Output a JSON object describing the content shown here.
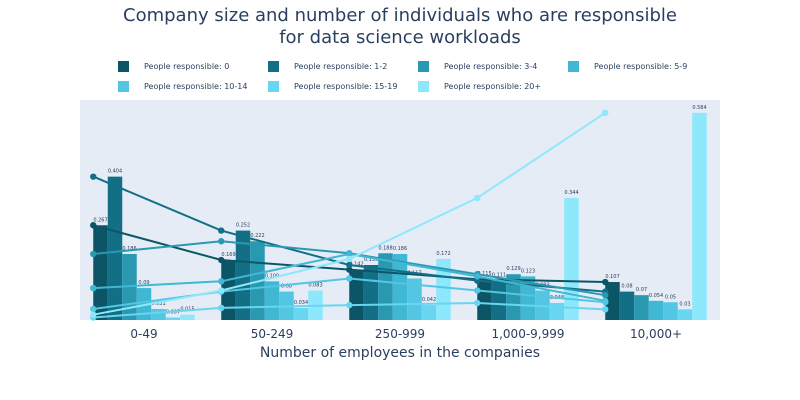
{
  "chart_data": {
    "type": "bar",
    "title": "Company size and number of individuals who are responsible",
    "title_line2": "for data science workloads",
    "xlabel": "Number of employees in the companies",
    "ylabel": "",
    "categories": [
      "0-49",
      "50-249",
      "250-999",
      "1,000-9,999",
      "10,000+"
    ],
    "ylim": [
      0,
      0.62
    ],
    "legend_placement": "top",
    "plot_background": "#e5ecf6",
    "series": [
      {
        "name": "People responsible: 0",
        "color": "#0b5567",
        "values": [
          0.267,
          0.169,
          0.142,
          0.115,
          0.107
        ]
      },
      {
        "name": "People responsible: 1-2",
        "color": "#136f86",
        "values": [
          0.404,
          0.252,
          0.155,
          0.111,
          0.08
        ]
      },
      {
        "name": "People responsible: 3-4",
        "color": "#2998b1",
        "values": [
          0.186,
          0.222,
          0.188,
          0.129,
          0.07
        ]
      },
      {
        "name": "People responsible: 5-9",
        "color": "#40b8d4",
        "values": [
          0.09,
          0.109,
          0.186,
          0.123,
          0.054
        ]
      },
      {
        "name": "People responsible: 10-14",
        "color": "#52c6e3",
        "values": [
          0.031,
          0.08,
          0.117,
          0.083,
          0.05
        ]
      },
      {
        "name": "People responsible: 15-19",
        "color": "#68d6f0",
        "values": [
          0.007,
          0.034,
          0.042,
          0.048,
          0.03
        ]
      },
      {
        "name": "People responsible: 20+",
        "color": "#8ee8fb",
        "values": [
          0.015,
          0.083,
          0.172,
          0.344,
          0.584
        ]
      }
    ],
    "data_labels": [
      [
        "0.267",
        "0.169",
        "0.142",
        "0.115",
        "0.107"
      ],
      [
        "0.404",
        "0.252",
        "0.155",
        "0.111",
        "0.08"
      ],
      [
        "0.186",
        "0.222",
        "0.188",
        "0.129",
        "0.07"
      ],
      [
        "0.09",
        "0.109",
        "0.186",
        "0.123",
        "0.054"
      ],
      [
        "0.031",
        "0.08",
        "0.117",
        "0.083",
        "0.05"
      ],
      [
        "0.007",
        "0.034",
        "0.042",
        "0.048",
        "0.03"
      ],
      [
        "0.015",
        "0.083",
        "0.172",
        "0.344",
        "0.584"
      ]
    ]
  }
}
